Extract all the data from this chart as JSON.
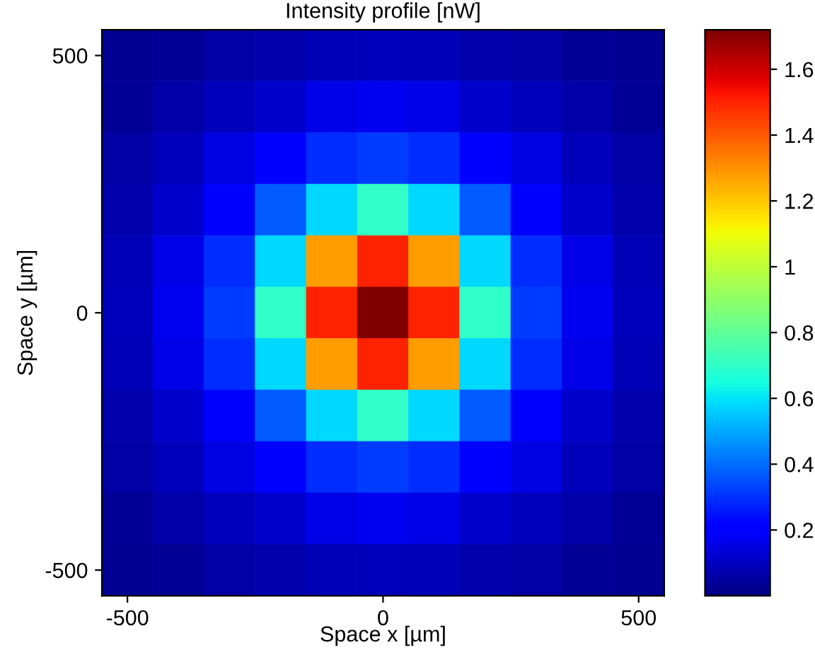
{
  "chart_data": {
    "type": "heatmap",
    "title": "Intensity profile [nW]",
    "xlabel": "Space x [µm]",
    "ylabel": "Space y [µm]",
    "categories": [
      "-500",
      null,
      null,
      null,
      null,
      "0",
      null,
      null,
      null,
      null,
      "500"
    ],
    "y_categories": [
      "500",
      null,
      null,
      null,
      null,
      "0",
      null,
      null,
      null,
      null,
      "-500"
    ],
    "clim": [
      0,
      1.72
    ],
    "cticks": [
      0.2,
      0.4,
      0.6,
      0.8,
      1,
      1.2,
      1.4,
      1.6
    ],
    "grid": false,
    "cells": [
      [
        0.03,
        0.04,
        0.06,
        0.07,
        0.085,
        0.09,
        0.085,
        0.07,
        0.06,
        0.04,
        0.03
      ],
      [
        0.04,
        0.065,
        0.09,
        0.12,
        0.16,
        0.17,
        0.16,
        0.12,
        0.09,
        0.065,
        0.04
      ],
      [
        0.06,
        0.09,
        0.15,
        0.22,
        0.29,
        0.32,
        0.29,
        0.22,
        0.15,
        0.09,
        0.06
      ],
      [
        0.07,
        0.12,
        0.22,
        0.37,
        0.58,
        0.7,
        0.58,
        0.37,
        0.22,
        0.12,
        0.07
      ],
      [
        0.085,
        0.16,
        0.29,
        0.58,
        1.28,
        1.5,
        1.28,
        0.58,
        0.29,
        0.16,
        0.085
      ],
      [
        0.09,
        0.17,
        0.32,
        0.7,
        1.5,
        1.72,
        1.5,
        0.7,
        0.32,
        0.17,
        0.09
      ],
      [
        0.085,
        0.16,
        0.29,
        0.58,
        1.28,
        1.5,
        1.28,
        0.58,
        0.29,
        0.16,
        0.085
      ],
      [
        0.07,
        0.12,
        0.22,
        0.37,
        0.58,
        0.7,
        0.58,
        0.37,
        0.22,
        0.12,
        0.07
      ],
      [
        0.06,
        0.09,
        0.15,
        0.22,
        0.29,
        0.32,
        0.29,
        0.22,
        0.15,
        0.09,
        0.06
      ],
      [
        0.04,
        0.065,
        0.09,
        0.12,
        0.16,
        0.17,
        0.16,
        0.12,
        0.09,
        0.065,
        0.04
      ],
      [
        0.03,
        0.04,
        0.06,
        0.07,
        0.085,
        0.09,
        0.085,
        0.07,
        0.06,
        0.04,
        0.03
      ]
    ]
  }
}
